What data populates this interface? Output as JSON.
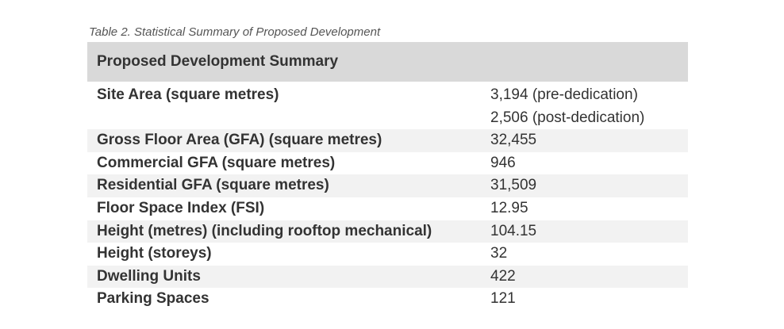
{
  "caption": "Table 2. Statistical Summary of Proposed Development",
  "table": {
    "header": "Proposed Development Summary",
    "site_area": {
      "label": "Site Area (square metres)",
      "value_1": "3,194 (pre-dedication)",
      "value_2": "2,506 (post-dedication)"
    },
    "rows": [
      {
        "label": "Gross Floor Area (GFA) (square metres)",
        "value": "32,455"
      },
      {
        "label": "Commercial GFA (square metres)",
        "value": "946"
      },
      {
        "label": "Residential GFA (square metres)",
        "value": "31,509"
      },
      {
        "label": "Floor Space Index (FSI)",
        "value": "12.95"
      },
      {
        "label": "Height (metres) (including rooftop mechanical)",
        "value": "104.15"
      },
      {
        "label": "Height (storeys)",
        "value": "32"
      },
      {
        "label": "Dwelling Units",
        "value": "422"
      },
      {
        "label": "Parking Spaces",
        "value": "121"
      }
    ]
  }
}
